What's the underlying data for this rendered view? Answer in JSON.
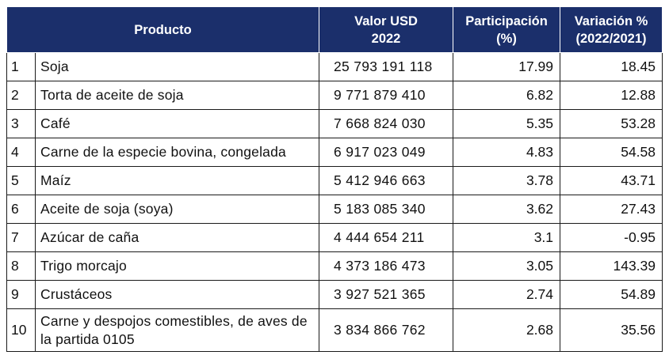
{
  "table": {
    "headers": {
      "producto": "Producto",
      "valor_line1": "Valor USD",
      "valor_line2": "2022",
      "participacion_line1": "Participación",
      "participacion_line2": "(%)",
      "variacion_line1": "Variación %",
      "variacion_line2": "(2022/2021)"
    },
    "rows": [
      {
        "rank": "1",
        "producto": "Soja",
        "valor": "25 793 191 118",
        "participacion": "17.99",
        "variacion": "18.45"
      },
      {
        "rank": "2",
        "producto": "Torta de aceite de soja",
        "valor": "9 771 879 410",
        "participacion": "6.82",
        "variacion": "12.88"
      },
      {
        "rank": "3",
        "producto": "Café",
        "valor": "7 668 824 030",
        "participacion": "5.35",
        "variacion": "53.28"
      },
      {
        "rank": "4",
        "producto": "Carne de la especie bovina, congelada",
        "valor": "6 917 023 049",
        "participacion": "4.83",
        "variacion": "54.58"
      },
      {
        "rank": "5",
        "producto": "Maíz",
        "valor": "5 412 946 663",
        "participacion": "3.78",
        "variacion": "43.71"
      },
      {
        "rank": "6",
        "producto": "Aceite de soja (soya)",
        "valor": "5 183 085 340",
        "participacion": "3.62",
        "variacion": "27.43"
      },
      {
        "rank": "7",
        "producto": "Azúcar de caña",
        "valor": "4 444 654 211",
        "participacion": "3.1",
        "variacion": "-0.95"
      },
      {
        "rank": "8",
        "producto": "Trigo morcajo",
        "valor": "4 373 186 473",
        "participacion": "3.05",
        "variacion": "143.39"
      },
      {
        "rank": "9",
        "producto": "Crustáceos",
        "valor": "3 927 521 365",
        "participacion": "2.74",
        "variacion": "54.89"
      },
      {
        "rank": "10",
        "producto": "Carne y despojos comestibles, de aves de la partida 0105",
        "valor": "3 834 866 762",
        "participacion": "2.68",
        "variacion": "35.56"
      }
    ]
  },
  "colors": {
    "header_bg": "#1b2f6b",
    "header_text": "#ffffff",
    "border": "#1a1a1a"
  }
}
